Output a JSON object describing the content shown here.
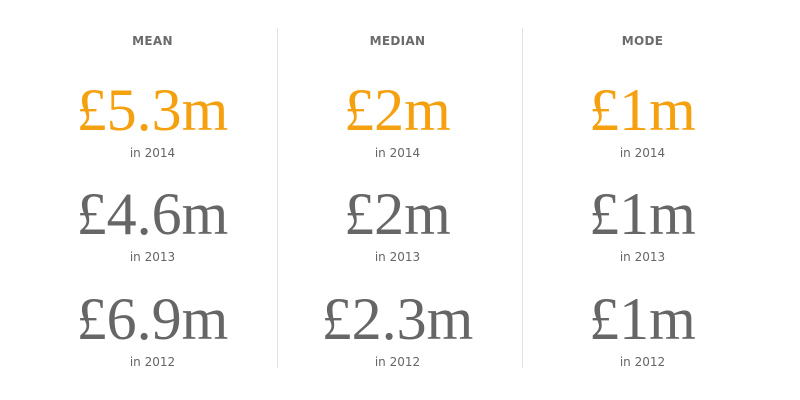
{
  "columns": [
    {
      "heading": "MEAN",
      "entries": [
        {
          "value": "£5.3m",
          "year": "in 2014"
        },
        {
          "value": "£4.6m",
          "year": "in 2013"
        },
        {
          "value": "£6.9m",
          "year": "in 2012"
        }
      ]
    },
    {
      "heading": "MEDIAN",
      "entries": [
        {
          "value": "£2m",
          "year": "in 2014"
        },
        {
          "value": "£2m",
          "year": "in 2013"
        },
        {
          "value": "£2.3m",
          "year": "in 2012"
        }
      ]
    },
    {
      "heading": "MODE",
      "entries": [
        {
          "value": "£1m",
          "year": "in 2014"
        },
        {
          "value": "£1m",
          "year": "in 2013"
        },
        {
          "value": "£1m",
          "year": "in 2012"
        }
      ]
    }
  ]
}
